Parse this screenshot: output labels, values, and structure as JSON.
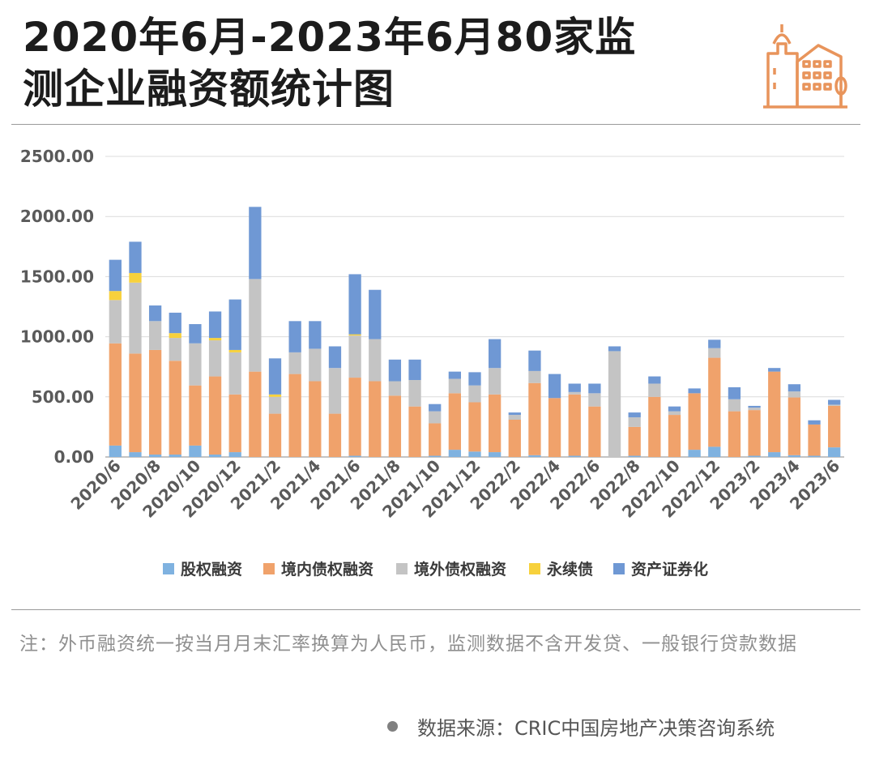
{
  "title": {
    "line1": "2020年6月-2023年6月80家监",
    "line2": "测企业融资额统计图"
  },
  "colors": {
    "equity": "#7fb2e0",
    "domestic_bond": "#f0a26b",
    "overseas_bond": "#c4c4c4",
    "perpetual_bond": "#f7d13c",
    "abs": "#6f98d4",
    "logo": "#e8945b"
  },
  "logo_icon": "city-buildings-icon",
  "chart_data": {
    "type": "bar",
    "stacked": true,
    "ylim": [
      0,
      2500
    ],
    "yticks": [
      "0.00",
      "500.00",
      "1000.00",
      "1500.00",
      "2000.00",
      "2500.00"
    ],
    "categories": [
      "2020/6",
      "2020/7",
      "2020/8",
      "2020/9",
      "2020/10",
      "2020/11",
      "2020/12",
      "2021/1",
      "2021/2",
      "2021/3",
      "2021/4",
      "2021/5",
      "2021/6",
      "2021/7",
      "2021/8",
      "2021/9",
      "2021/10",
      "2021/11",
      "2021/12",
      "2022/1",
      "2022/2",
      "2022/3",
      "2022/4",
      "2022/5",
      "2022/6",
      "2022/7",
      "2022/8",
      "2022/9",
      "2022/10",
      "2022/11",
      "2022/12",
      "2023/1",
      "2023/2",
      "2023/3",
      "2023/4",
      "2023/5",
      "2023/6"
    ],
    "xtick_labels": [
      "2020/6",
      "2020/8",
      "2020/10",
      "2020/12",
      "2021/2",
      "2021/4",
      "2021/6",
      "2021/8",
      "2021/10",
      "2021/12",
      "2022/2",
      "2022/4",
      "2022/6",
      "2022/8",
      "2022/10",
      "2022/12",
      "2023/2",
      "2023/4",
      "2023/6"
    ],
    "series": [
      {
        "name": "股权融资",
        "color_key": "equity",
        "values": [
          95,
          40,
          20,
          20,
          95,
          20,
          40,
          0,
          0,
          0,
          0,
          0,
          10,
          0,
          0,
          0,
          10,
          60,
          45,
          40,
          0,
          15,
          0,
          10,
          0,
          0,
          10,
          0,
          0,
          60,
          85,
          0,
          10,
          40,
          15,
          10,
          80
        ]
      },
      {
        "name": "境内债权融资",
        "color_key": "domestic_bond",
        "values": [
          850,
          820,
          870,
          780,
          500,
          650,
          480,
          710,
          360,
          690,
          630,
          360,
          650,
          630,
          510,
          420,
          270,
          470,
          410,
          480,
          310,
          600,
          490,
          510,
          420,
          0,
          240,
          500,
          350,
          470,
          740,
          380,
          380,
          670,
          480,
          260,
          345
        ]
      },
      {
        "name": "境外债权融资",
        "color_key": "overseas_bond",
        "values": [
          360,
          590,
          240,
          190,
          350,
          300,
          350,
          770,
          140,
          180,
          270,
          380,
          350,
          350,
          120,
          220,
          100,
          120,
          140,
          220,
          40,
          100,
          0,
          20,
          110,
          880,
          80,
          110,
          30,
          0,
          80,
          100,
          20,
          0,
          50,
          0,
          10
        ]
      },
      {
        "name": "永续债",
        "color_key": "perpetual_bond",
        "values": [
          75,
          80,
          0,
          40,
          0,
          20,
          20,
          0,
          20,
          0,
          0,
          0,
          10,
          0,
          0,
          0,
          0,
          0,
          0,
          0,
          0,
          0,
          0,
          0,
          0,
          0,
          0,
          0,
          0,
          0,
          0,
          0,
          0,
          0,
          0,
          0,
          0
        ]
      },
      {
        "name": "资产证券化",
        "color_key": "abs",
        "values": [
          260,
          260,
          130,
          170,
          160,
          220,
          420,
          600,
          300,
          260,
          230,
          180,
          500,
          410,
          180,
          170,
          60,
          60,
          110,
          240,
          20,
          170,
          200,
          70,
          80,
          40,
          40,
          60,
          40,
          40,
          70,
          100,
          15,
          30,
          60,
          35,
          40
        ]
      }
    ]
  },
  "note": "注：外币融资统一按当月月末汇率换算为人民币，监测数据不含开发贷、一般银行贷款数据",
  "source": "数据来源：CRIC中国房地产决策咨询系统"
}
